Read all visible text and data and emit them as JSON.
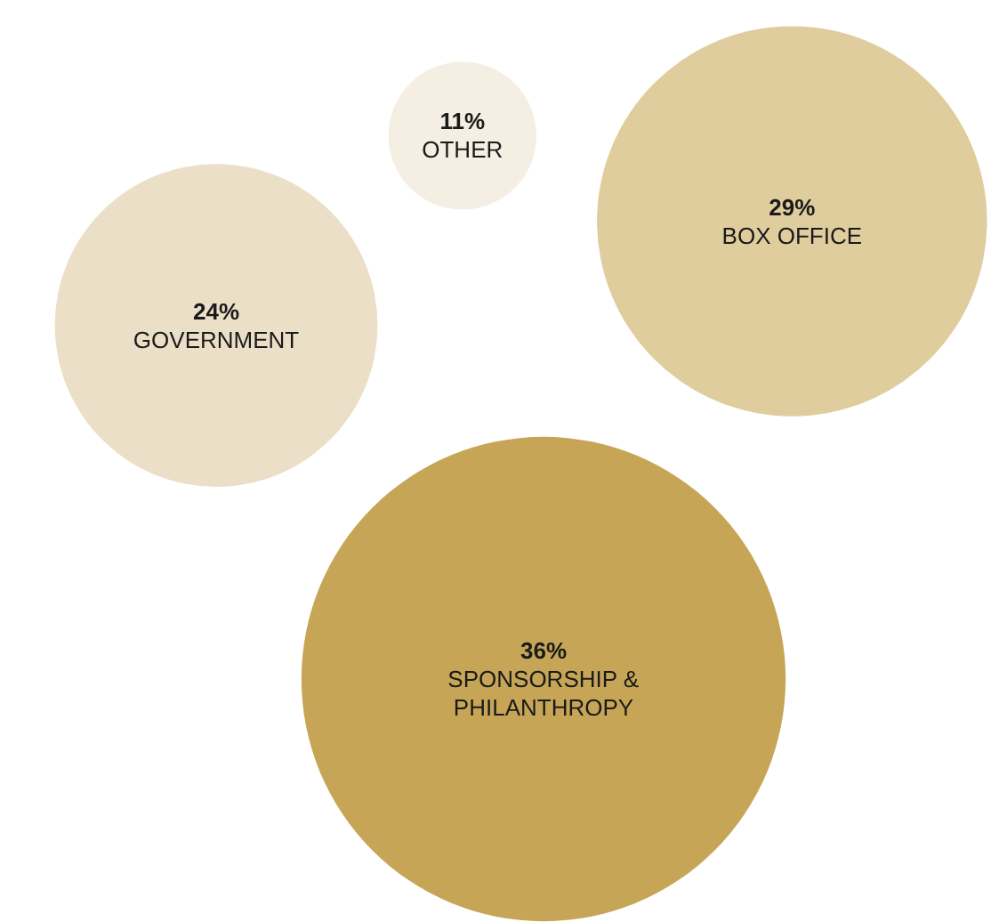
{
  "chart_data": {
    "type": "other",
    "categories": [
      "OTHER",
      "BOX OFFICE",
      "GOVERNMENT",
      "SPONSORSHIP & PHILANTHROPY"
    ],
    "values": [
      11,
      29,
      24,
      36
    ],
    "value_labels": [
      "11%",
      "29%",
      "24%",
      "36%"
    ],
    "colors": [
      "#f5efe3",
      "#e0cd9e",
      "#ebdfc7",
      "#c6a656"
    ]
  }
}
